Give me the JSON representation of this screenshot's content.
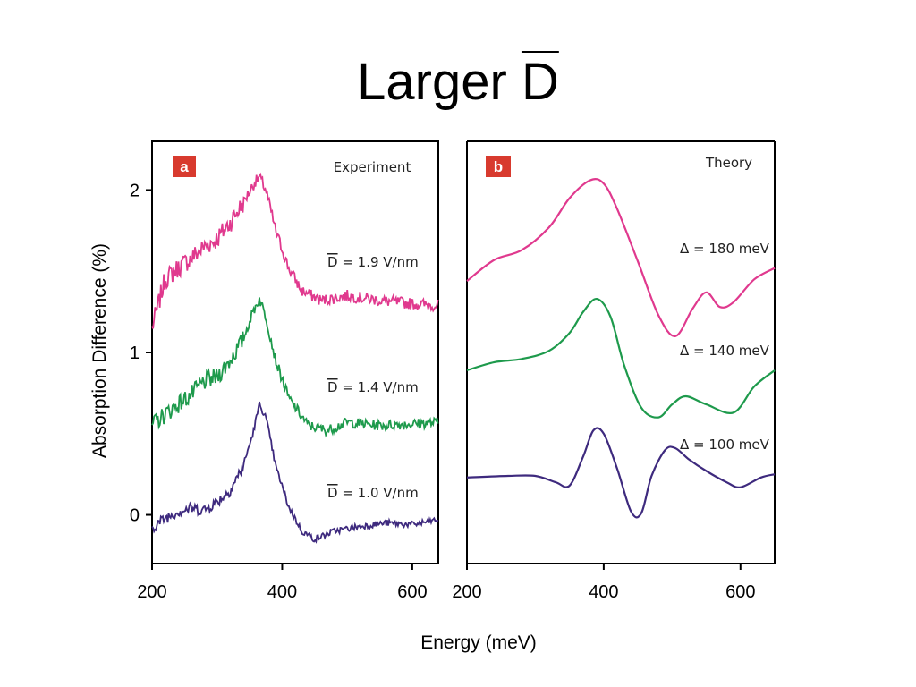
{
  "slide": {
    "title_main": "Larger ",
    "title_symbol": "D"
  },
  "chart_data": [
    {
      "type": "line",
      "panel_badge": "a",
      "panel_title": "Experiment",
      "xlabel": "Energy (meV)",
      "ylabel": "Absorption Difference (%)",
      "xlim": [
        200,
        640
      ],
      "ylim": [
        -0.3,
        2.3
      ],
      "xticks": [
        "200",
        "400",
        "600"
      ],
      "yticks": [
        "0",
        "1",
        "2"
      ],
      "series": [
        {
          "name": "D = 1.9 V/nm",
          "label_symbol": "D",
          "label_value": " = 1.9 V/nm",
          "color": "#e0398e",
          "x": [
            200,
            220,
            240,
            260,
            280,
            300,
            320,
            340,
            355,
            365,
            375,
            390,
            410,
            430,
            460,
            500,
            550,
            600,
            640
          ],
          "y": [
            1.15,
            1.45,
            1.52,
            1.58,
            1.65,
            1.7,
            1.8,
            1.92,
            2.03,
            2.08,
            2.0,
            1.75,
            1.52,
            1.38,
            1.32,
            1.35,
            1.32,
            1.3,
            1.29
          ]
        },
        {
          "name": "D = 1.4 V/nm",
          "label_symbol": "D",
          "label_value": " = 1.4 V/nm",
          "color": "#1e9a4c",
          "x": [
            200,
            220,
            240,
            260,
            280,
            300,
            320,
            340,
            355,
            365,
            375,
            390,
            410,
            440,
            470,
            500,
            550,
            600,
            640
          ],
          "y": [
            0.55,
            0.62,
            0.68,
            0.74,
            0.82,
            0.85,
            0.95,
            1.08,
            1.25,
            1.33,
            1.22,
            0.95,
            0.72,
            0.55,
            0.52,
            0.57,
            0.55,
            0.56,
            0.57
          ]
        },
        {
          "name": "D = 1.0 V/nm",
          "label_symbol": "D",
          "label_value": " = 1.0 V/nm",
          "color": "#3e2a7e",
          "x": [
            200,
            220,
            240,
            260,
            280,
            300,
            320,
            340,
            355,
            365,
            375,
            390,
            410,
            430,
            450,
            480,
            520,
            560,
            600,
            640
          ],
          "y": [
            -0.08,
            -0.02,
            0.02,
            0.04,
            0.03,
            0.08,
            0.15,
            0.3,
            0.5,
            0.68,
            0.6,
            0.3,
            0.05,
            -0.1,
            -0.15,
            -0.1,
            -0.07,
            -0.05,
            -0.06,
            -0.03
          ]
        }
      ]
    },
    {
      "type": "line",
      "panel_badge": "b",
      "panel_title": "Theory",
      "xlabel": "Energy (meV)",
      "xlim": [
        200,
        650
      ],
      "xticks": [
        "200",
        "400",
        "600"
      ],
      "series": [
        {
          "name": "Δ = 180 meV",
          "label": "Δ = 180 meV",
          "color": "#e0398e",
          "x": [
            200,
            240,
            280,
            320,
            350,
            380,
            400,
            420,
            450,
            480,
            505,
            530,
            550,
            570,
            590,
            620,
            650
          ],
          "y": [
            1.44,
            1.57,
            1.63,
            1.77,
            1.95,
            2.06,
            2.04,
            1.88,
            1.56,
            1.23,
            1.1,
            1.27,
            1.37,
            1.28,
            1.31,
            1.45,
            1.52
          ]
        },
        {
          "name": "Δ = 140 meV",
          "label": "Δ = 140 meV",
          "color": "#1e9a4c",
          "x": [
            200,
            240,
            280,
            320,
            350,
            370,
            390,
            410,
            430,
            455,
            480,
            500,
            520,
            550,
            590,
            620,
            650
          ],
          "y": [
            0.89,
            0.94,
            0.96,
            1.01,
            1.12,
            1.25,
            1.33,
            1.22,
            0.92,
            0.66,
            0.6,
            0.68,
            0.73,
            0.68,
            0.63,
            0.79,
            0.89
          ]
        },
        {
          "name": "Δ = 100 meV",
          "label": "Δ = 100 meV",
          "color": "#3e2a7e",
          "x": [
            200,
            260,
            300,
            330,
            350,
            370,
            385,
            400,
            420,
            440,
            455,
            470,
            490,
            505,
            525,
            550,
            580,
            600,
            630,
            650
          ],
          "y": [
            0.23,
            0.24,
            0.24,
            0.2,
            0.18,
            0.36,
            0.52,
            0.5,
            0.28,
            0.02,
            0.01,
            0.24,
            0.4,
            0.41,
            0.34,
            0.27,
            0.2,
            0.17,
            0.23,
            0.25
          ]
        }
      ]
    }
  ]
}
